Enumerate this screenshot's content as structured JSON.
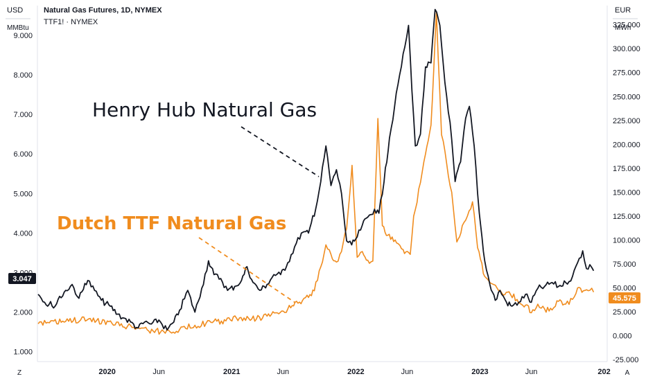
{
  "header": {
    "title": "Natural Gas Futures, 1D, NYMEX",
    "subtitle": "TTF1! · NYMEX",
    "left_unit_top": "USD",
    "left_unit_bottom": "MMBtu",
    "right_unit_top": "EUR",
    "right_unit_bottom": "MWh"
  },
  "footer": {
    "left_button": "Z",
    "right_button": "A"
  },
  "chart_data": {
    "type": "line",
    "x_tick_labels": [
      "2020",
      "Jun",
      "2021",
      "Jun",
      "2022",
      "Jun",
      "2023",
      "Jun",
      "202"
    ],
    "x_tick_dates": [
      "2020-01-01",
      "2020-06-01",
      "2021-01-01",
      "2021-06-01",
      "2022-01-01",
      "2022-06-01",
      "2023-01-01",
      "2023-06-01",
      "2024-01-01"
    ],
    "x_range": [
      "2019-06-10",
      "2024-01-10"
    ],
    "left_axis": {
      "unit": "USD / MMBtu",
      "ticks": [
        "1.000",
        "2.000",
        "3.000",
        "4.000",
        "5.000",
        "6.000",
        "7.000",
        "8.000",
        "9.000"
      ],
      "tick_values": [
        1,
        2,
        3,
        4,
        5,
        6,
        7,
        8,
        9
      ],
      "ylim": [
        0.75,
        9.75
      ]
    },
    "right_axis": {
      "unit": "EUR / MWh",
      "ticks": [
        "-25.000",
        "0.000",
        "25.000",
        "50.000",
        "75.000",
        "100.000",
        "125.000",
        "150.000",
        "175.000",
        "200.000",
        "225.000",
        "250.000",
        "275.000",
        "300.000",
        "325.000"
      ],
      "tick_values": [
        -25,
        0,
        25,
        50,
        75,
        100,
        125,
        150,
        175,
        200,
        225,
        250,
        275,
        300,
        325
      ],
      "ylim": [
        -27,
        345
      ]
    },
    "series": [
      {
        "name": "Henry Hub Natural Gas",
        "axis": "left",
        "color": "#131722",
        "last_value_label": "3.047",
        "points": [
          [
            "2019-06-12",
            2.45
          ],
          [
            "2019-07-01",
            2.25
          ],
          [
            "2019-08-01",
            2.15
          ],
          [
            "2019-09-01",
            2.55
          ],
          [
            "2019-09-20",
            2.7
          ],
          [
            "2019-10-10",
            2.35
          ],
          [
            "2019-11-05",
            2.8
          ],
          [
            "2019-11-25",
            2.55
          ],
          [
            "2019-12-15",
            2.3
          ],
          [
            "2020-01-10",
            2.15
          ],
          [
            "2020-02-01",
            1.95
          ],
          [
            "2020-02-20",
            1.85
          ],
          [
            "2020-03-10",
            1.75
          ],
          [
            "2020-04-01",
            1.6
          ],
          [
            "2020-04-20",
            1.75
          ],
          [
            "2020-05-10",
            1.7
          ],
          [
            "2020-06-01",
            1.8
          ],
          [
            "2020-06-25",
            1.55
          ],
          [
            "2020-07-15",
            1.75
          ],
          [
            "2020-08-01",
            2.05
          ],
          [
            "2020-08-25",
            2.55
          ],
          [
            "2020-09-15",
            2.0
          ],
          [
            "2020-10-05",
            2.6
          ],
          [
            "2020-10-25",
            3.3
          ],
          [
            "2020-11-10",
            2.95
          ],
          [
            "2020-11-30",
            2.85
          ],
          [
            "2020-12-20",
            2.55
          ],
          [
            "2021-01-10",
            2.65
          ],
          [
            "2021-01-30",
            2.8
          ],
          [
            "2021-02-15",
            3.15
          ],
          [
            "2021-03-05",
            2.75
          ],
          [
            "2021-03-25",
            2.55
          ],
          [
            "2021-04-15",
            2.7
          ],
          [
            "2021-05-05",
            2.95
          ],
          [
            "2021-05-25",
            2.95
          ],
          [
            "2021-06-15",
            3.25
          ],
          [
            "2021-07-05",
            3.65
          ],
          [
            "2021-07-25",
            4.0
          ],
          [
            "2021-08-15",
            4.0
          ],
          [
            "2021-09-05",
            4.6
          ],
          [
            "2021-09-20",
            5.3
          ],
          [
            "2021-10-05",
            6.2
          ],
          [
            "2021-10-20",
            5.2
          ],
          [
            "2021-11-05",
            5.6
          ],
          [
            "2021-11-20",
            5.0
          ],
          [
            "2021-12-05",
            3.8
          ],
          [
            "2021-12-20",
            3.7
          ],
          [
            "2022-01-05",
            3.9
          ],
          [
            "2022-01-20",
            4.2
          ],
          [
            "2022-02-05",
            4.4
          ],
          [
            "2022-02-25",
            4.6
          ],
          [
            "2022-03-10",
            4.5
          ],
          [
            "2022-03-25",
            5.3
          ],
          [
            "2022-04-10",
            6.4
          ],
          [
            "2022-04-25",
            7.2
          ],
          [
            "2022-05-10",
            8.0
          ],
          [
            "2022-05-25",
            8.7
          ],
          [
            "2022-06-05",
            9.25
          ],
          [
            "2022-06-15",
            7.6
          ],
          [
            "2022-06-25",
            6.2
          ],
          [
            "2022-07-10",
            6.5
          ],
          [
            "2022-07-25",
            8.2
          ],
          [
            "2022-08-10",
            8.3
          ],
          [
            "2022-08-22",
            9.65
          ],
          [
            "2022-09-05",
            9.25
          ],
          [
            "2022-09-20",
            7.8
          ],
          [
            "2022-10-05",
            6.8
          ],
          [
            "2022-10-20",
            5.3
          ],
          [
            "2022-11-05",
            5.8
          ],
          [
            "2022-11-20",
            6.9
          ],
          [
            "2022-12-01",
            7.2
          ],
          [
            "2022-12-15",
            6.2
          ],
          [
            "2022-12-30",
            4.5
          ],
          [
            "2023-01-15",
            3.3
          ],
          [
            "2023-01-30",
            2.7
          ],
          [
            "2023-02-15",
            2.3
          ],
          [
            "2023-03-01",
            2.55
          ],
          [
            "2023-03-20",
            2.25
          ],
          [
            "2023-04-05",
            2.15
          ],
          [
            "2023-04-25",
            2.25
          ],
          [
            "2023-05-15",
            2.45
          ],
          [
            "2023-06-01",
            2.25
          ],
          [
            "2023-06-20",
            2.6
          ],
          [
            "2023-07-10",
            2.65
          ],
          [
            "2023-08-01",
            2.75
          ],
          [
            "2023-08-20",
            2.65
          ],
          [
            "2023-09-10",
            2.75
          ],
          [
            "2023-09-30",
            2.9
          ],
          [
            "2023-10-15",
            3.25
          ],
          [
            "2023-10-30",
            3.55
          ],
          [
            "2023-11-10",
            3.1
          ],
          [
            "2023-11-20",
            3.2
          ],
          [
            "2023-12-01",
            3.047
          ]
        ]
      },
      {
        "name": "Dutch TTF Natural Gas",
        "axis": "right",
        "color": "#f08c1e",
        "last_value_label": "45.575",
        "points": [
          [
            "2019-06-12",
            12.5
          ],
          [
            "2019-07-15",
            13.5
          ],
          [
            "2019-09-01",
            15.0
          ],
          [
            "2019-10-15",
            16.5
          ],
          [
            "2019-12-01",
            16.0
          ],
          [
            "2020-01-15",
            13.0
          ],
          [
            "2020-03-01",
            10.0
          ],
          [
            "2020-04-15",
            8.0
          ],
          [
            "2020-05-15",
            5.0
          ],
          [
            "2020-06-15",
            4.5
          ],
          [
            "2020-08-01",
            6.5
          ],
          [
            "2020-09-15",
            11.0
          ],
          [
            "2020-11-01",
            14.0
          ],
          [
            "2020-12-15",
            15.5
          ],
          [
            "2021-01-15",
            18.5
          ],
          [
            "2021-03-01",
            17.5
          ],
          [
            "2021-04-15",
            20.5
          ],
          [
            "2021-05-15",
            24.0
          ],
          [
            "2021-06-15",
            28.0
          ],
          [
            "2021-07-15",
            34.0
          ],
          [
            "2021-08-15",
            40.0
          ],
          [
            "2021-09-01",
            47.0
          ],
          [
            "2021-09-20",
            72.0
          ],
          [
            "2021-10-05",
            95.0
          ],
          [
            "2021-10-20",
            85.0
          ],
          [
            "2021-11-05",
            77.0
          ],
          [
            "2021-11-20",
            88.0
          ],
          [
            "2021-12-05",
            112.0
          ],
          [
            "2021-12-21",
            178.0
          ],
          [
            "2022-01-05",
            82.0
          ],
          [
            "2022-01-20",
            88.0
          ],
          [
            "2022-02-05",
            79.0
          ],
          [
            "2022-02-20",
            78.0
          ],
          [
            "2022-03-07",
            227.0
          ],
          [
            "2022-03-20",
            115.0
          ],
          [
            "2022-04-05",
            105.0
          ],
          [
            "2022-05-01",
            97.0
          ],
          [
            "2022-05-20",
            90.0
          ],
          [
            "2022-06-10",
            85.0
          ],
          [
            "2022-06-20",
            125.0
          ],
          [
            "2022-07-10",
            160.0
          ],
          [
            "2022-07-25",
            190.0
          ],
          [
            "2022-08-10",
            220.0
          ],
          [
            "2022-08-26",
            338.0
          ],
          [
            "2022-09-10",
            210.0
          ],
          [
            "2022-09-25",
            180.0
          ],
          [
            "2022-10-10",
            150.0
          ],
          [
            "2022-10-25",
            98.0
          ],
          [
            "2022-11-10",
            115.0
          ],
          [
            "2022-11-25",
            125.0
          ],
          [
            "2022-12-10",
            140.0
          ],
          [
            "2022-12-25",
            92.0
          ],
          [
            "2023-01-15",
            62.0
          ],
          [
            "2023-02-01",
            55.0
          ],
          [
            "2023-02-20",
            50.0
          ],
          [
            "2023-03-15",
            43.0
          ],
          [
            "2023-04-01",
            43.0
          ],
          [
            "2023-04-20",
            38.0
          ],
          [
            "2023-05-15",
            32.0
          ],
          [
            "2023-06-01",
            24.0
          ],
          [
            "2023-06-20",
            33.0
          ],
          [
            "2023-07-10",
            28.0
          ],
          [
            "2023-08-01",
            27.0
          ],
          [
            "2023-08-20",
            36.0
          ],
          [
            "2023-09-10",
            33.0
          ],
          [
            "2023-09-30",
            38.0
          ],
          [
            "2023-10-15",
            50.0
          ],
          [
            "2023-11-01",
            47.0
          ],
          [
            "2023-11-20",
            47.5
          ],
          [
            "2023-12-01",
            45.575
          ]
        ]
      }
    ],
    "annotations": [
      {
        "text": "Henry Hub Natural Gas",
        "color": "#131722"
      },
      {
        "text": "Dutch TTF Natural Gas",
        "color": "#f08c1e"
      }
    ]
  }
}
